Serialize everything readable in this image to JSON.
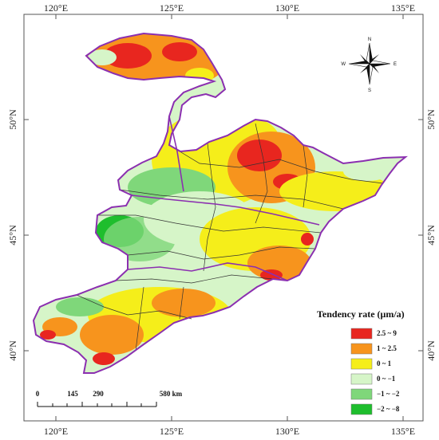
{
  "axes": {
    "top_ticks": [
      "120°E",
      "125°E",
      "130°E",
      "135°E"
    ],
    "bottom_ticks": [
      "120°E",
      "125°E",
      "130°E",
      "135°E"
    ],
    "left_ticks": [
      "50°N",
      "45°N",
      "40°N"
    ],
    "right_ticks": [
      "50°N",
      "45°N",
      "40°N"
    ]
  },
  "legend": {
    "title": "Tendency rate (μm/a)",
    "items": [
      {
        "label": "2.5 ~ 9",
        "color": "#e8261f"
      },
      {
        "label": "1 ~ 2.5",
        "color": "#f7941d"
      },
      {
        "label": "0 ~ 1",
        "color": "#f5ee1a"
      },
      {
        "label": "0 ~ −1",
        "color": "#d6f5c8"
      },
      {
        "label": "−1 ~ −2",
        "color": "#7fd77a"
      },
      {
        "label": "−2 ~ −8",
        "color": "#1ebe2d"
      }
    ]
  },
  "scale_bar": {
    "labels": [
      "0",
      "145",
      "290",
      "580 km"
    ]
  },
  "compass": {
    "n": "N",
    "s": "S",
    "e": "E",
    "w": "W"
  },
  "colors": {
    "boundary": "#8b2fb0",
    "internal_boundary": "#333333",
    "frame": "#555555"
  }
}
